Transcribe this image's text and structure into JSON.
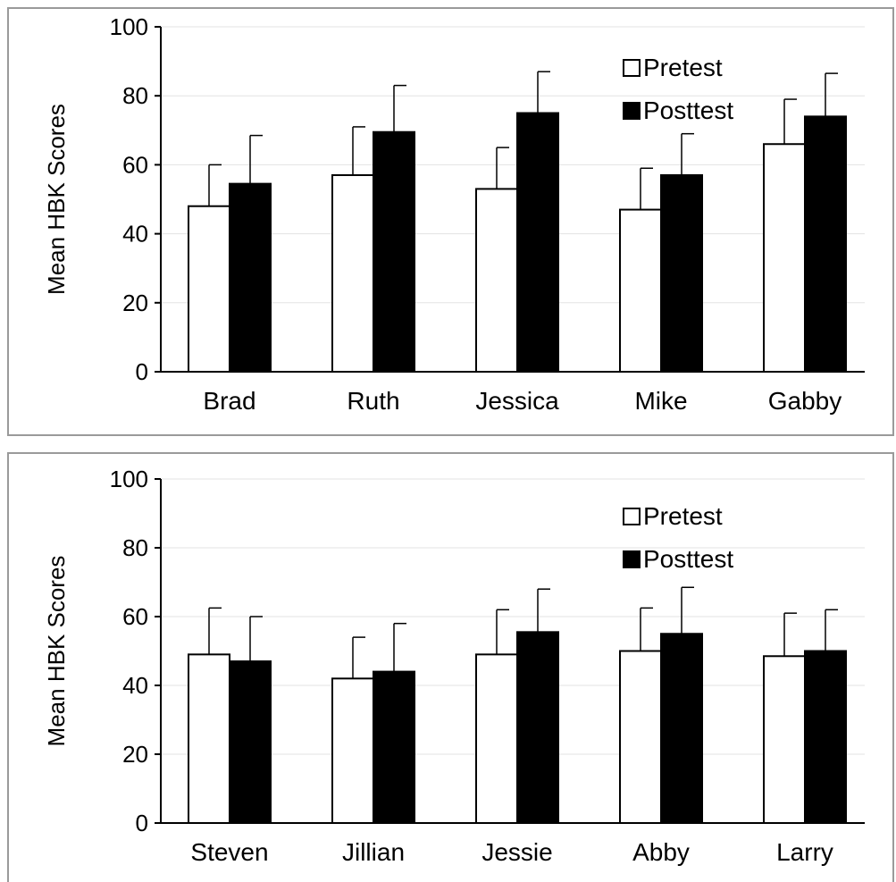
{
  "chart_data": [
    {
      "type": "bar",
      "ylabel": "Mean HBK Scores",
      "ylim": [
        0,
        100
      ],
      "yticks": [
        0,
        20,
        40,
        60,
        80,
        100
      ],
      "grid": true,
      "legend_position": "top-right",
      "categories": [
        "Brad",
        "Ruth",
        "Jessica",
        "Mike",
        "Gabby"
      ],
      "series": [
        {
          "name": "Pretest",
          "color": "#ffffff",
          "values": [
            48,
            57,
            53,
            47,
            66
          ],
          "error": [
            12,
            14,
            12,
            12,
            13
          ]
        },
        {
          "name": "Posttest",
          "color": "#000000",
          "values": [
            54.5,
            69.5,
            75,
            57,
            74
          ],
          "error": [
            14,
            13.5,
            12,
            12,
            12.5
          ]
        }
      ]
    },
    {
      "type": "bar",
      "ylabel": "Mean HBK Scores",
      "ylim": [
        0,
        100
      ],
      "yticks": [
        0,
        20,
        40,
        60,
        80,
        100
      ],
      "grid": true,
      "legend_position": "top-right",
      "categories": [
        "Steven",
        "Jillian",
        "Jessie",
        "Abby",
        "Larry"
      ],
      "series": [
        {
          "name": "Pretest",
          "color": "#ffffff",
          "values": [
            49,
            42,
            49,
            50,
            48.5
          ],
          "error": [
            13.5,
            12,
            13,
            12.5,
            12.5
          ]
        },
        {
          "name": "Posttest",
          "color": "#000000",
          "values": [
            47,
            44,
            55.5,
            55,
            50
          ],
          "error": [
            13,
            14,
            12.5,
            13.5,
            12
          ]
        }
      ]
    }
  ]
}
